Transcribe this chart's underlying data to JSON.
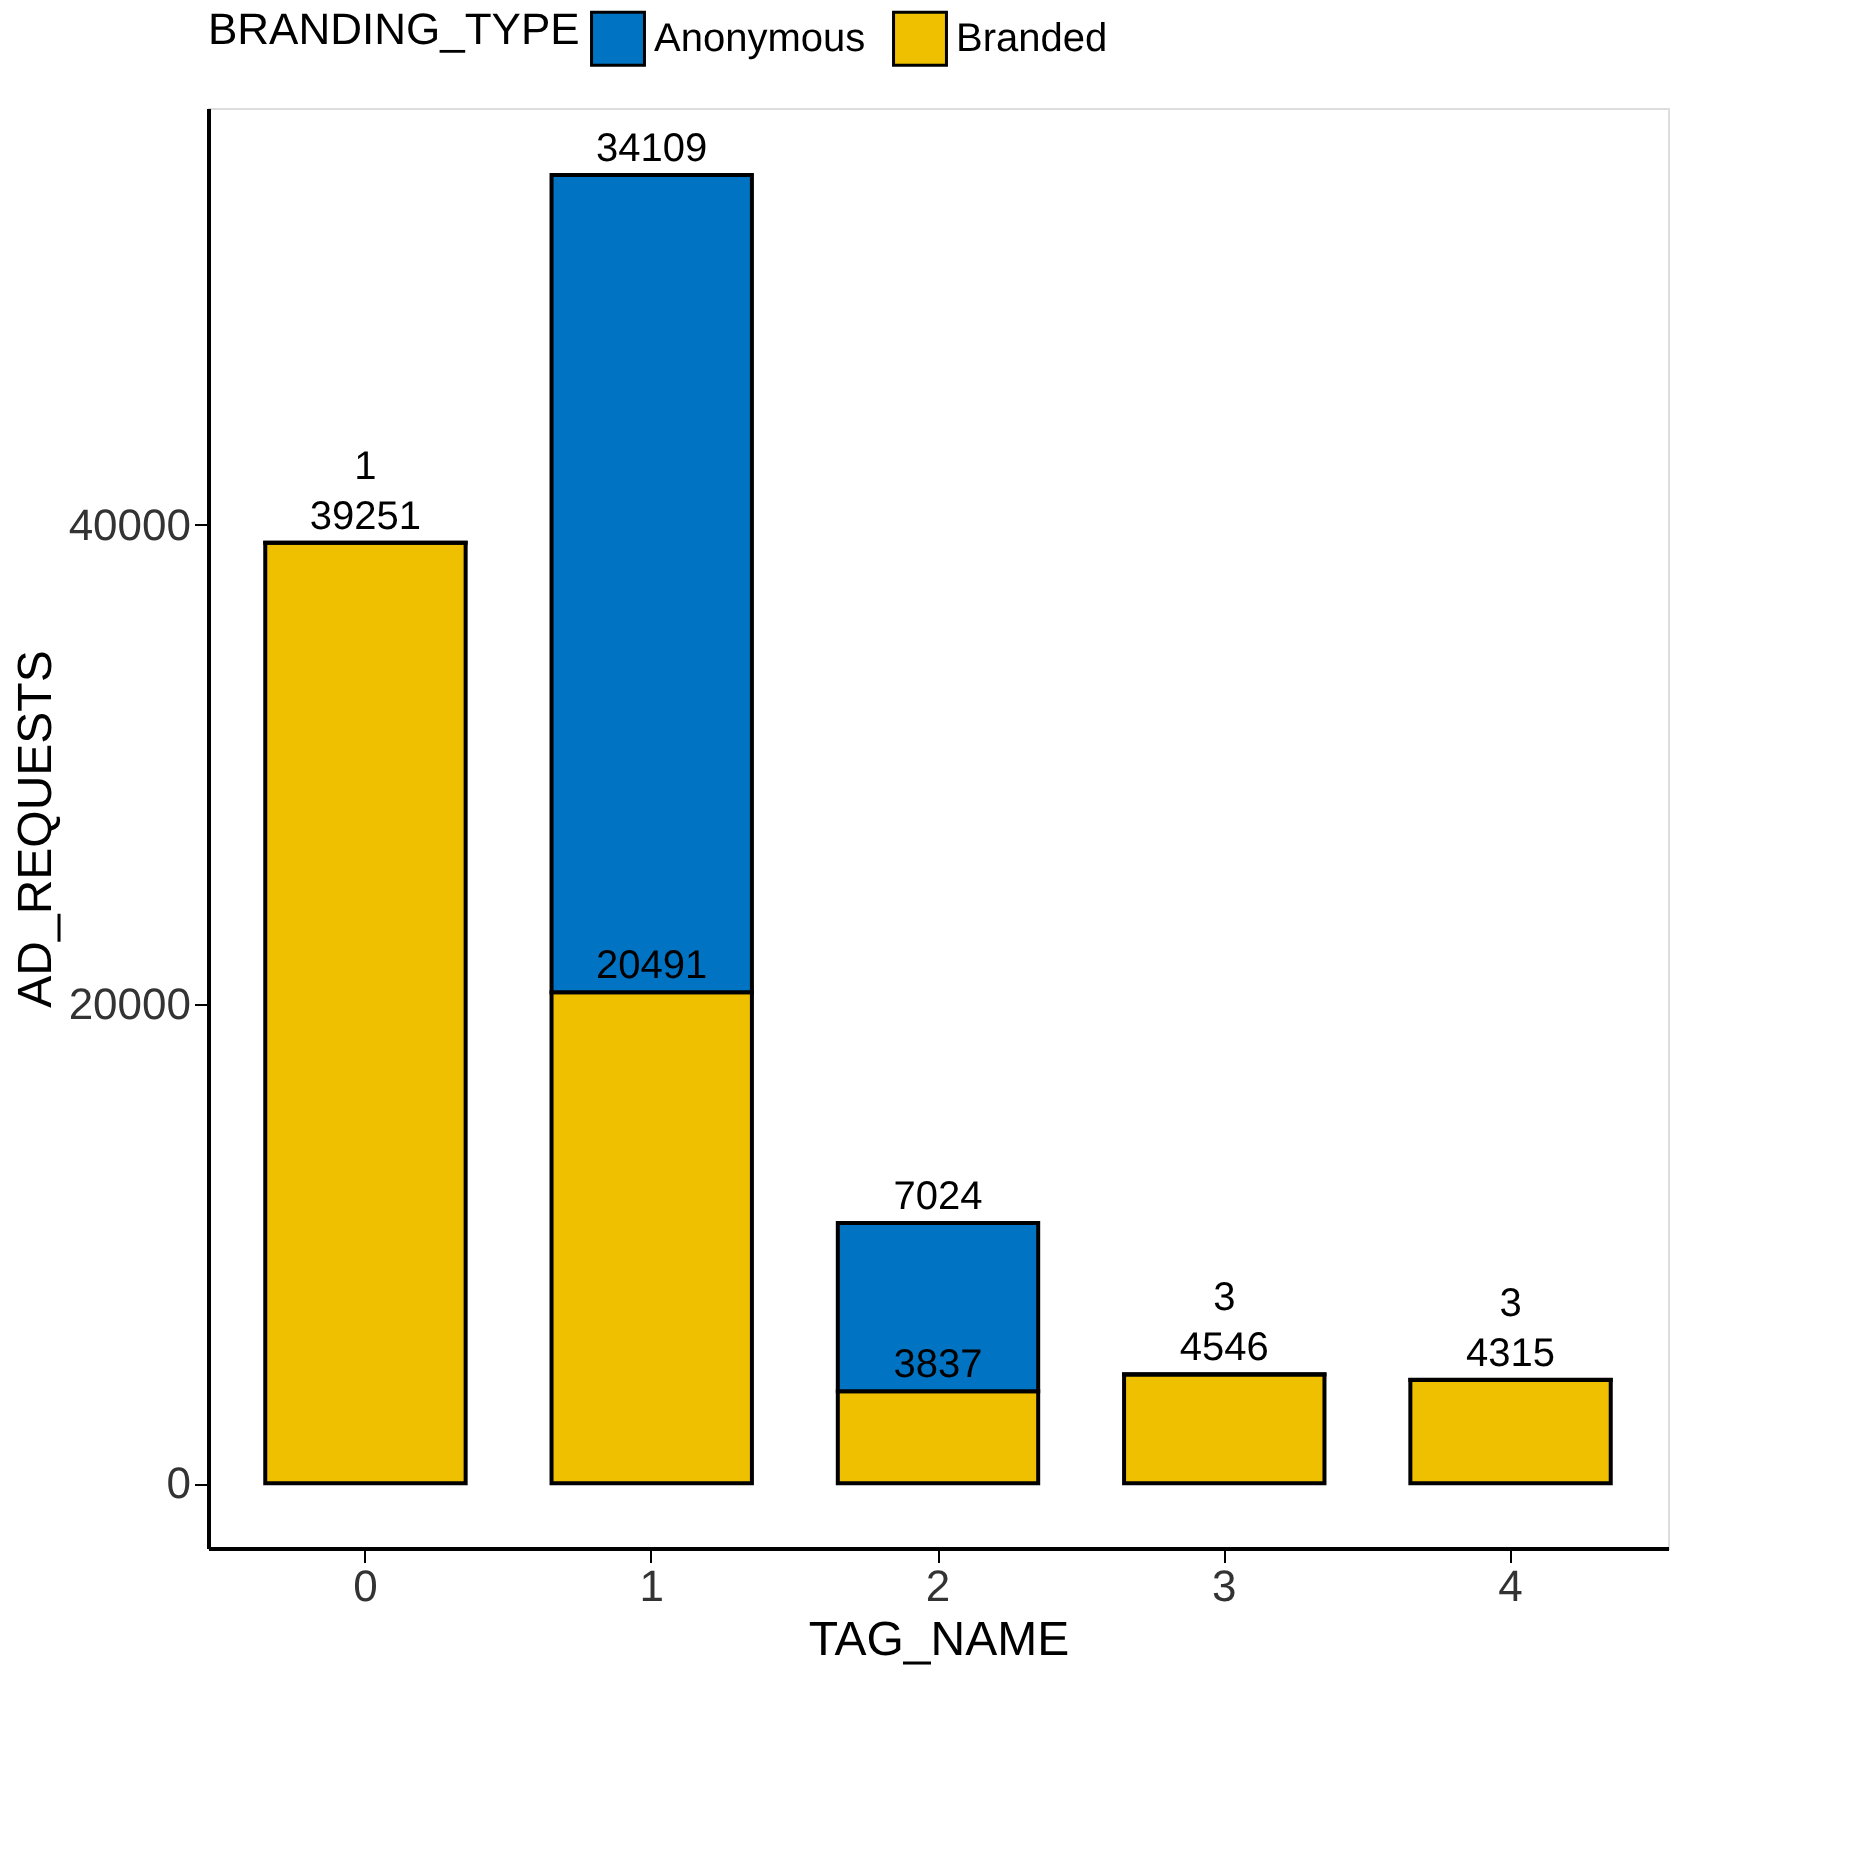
{
  "chart_data": {
    "type": "bar",
    "stacked": true,
    "xlabel": "TAG_NAME",
    "ylabel": "AD_REQUESTS",
    "legend_title": "BRANDING_TYPE",
    "legend": "top",
    "categories": [
      "0",
      "1",
      "2",
      "3",
      "4"
    ],
    "series": [
      {
        "name": "Branded",
        "color": "#efc000",
        "values": [
          39251,
          20491,
          3837,
          4546,
          4315
        ]
      },
      {
        "name": "Anonymous",
        "color": "#0073c2",
        "values": [
          1,
          34109,
          7024,
          3,
          3
        ]
      }
    ],
    "ylim": [
      -2700,
      57400
    ],
    "yticks": [
      0,
      20000,
      40000
    ],
    "grid": false,
    "data_labels": true
  }
}
